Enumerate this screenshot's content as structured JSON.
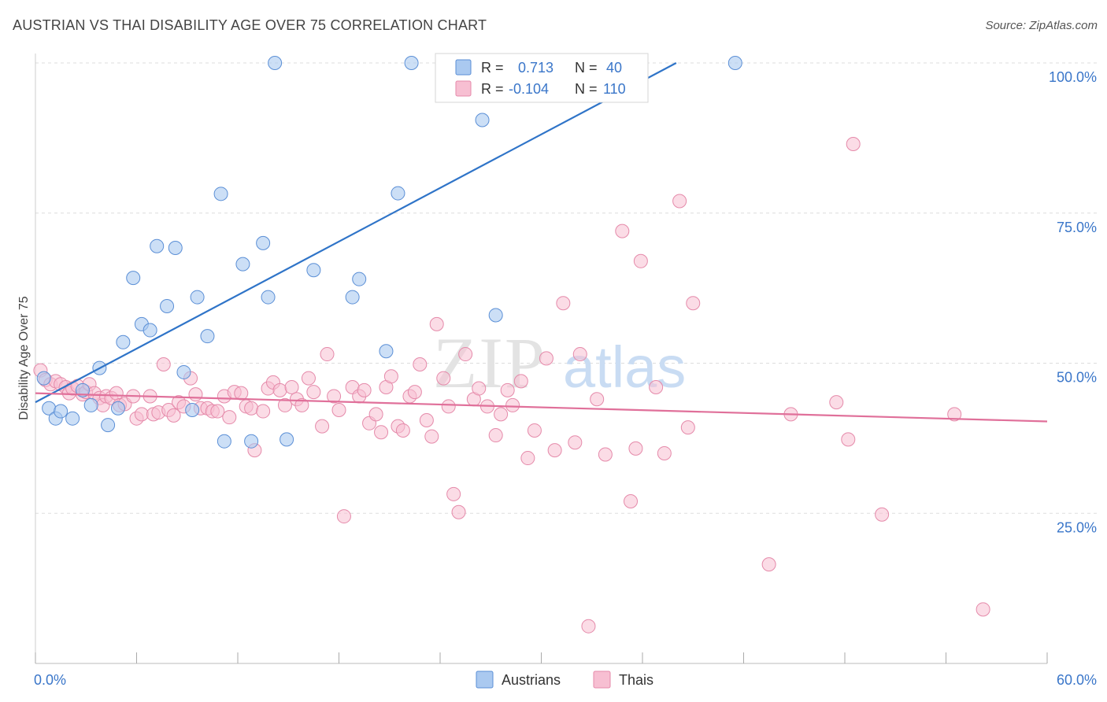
{
  "header": {
    "title": "AUSTRIAN VS THAI DISABILITY AGE OVER 75 CORRELATION CHART",
    "source": "Source: ZipAtlas.com"
  },
  "colors": {
    "austrians_fill": "#aac9f0",
    "austrians_stroke": "#5b8fd6",
    "austrians_line": "#2f74c8",
    "thais_fill": "#f7bfd2",
    "thais_stroke": "#e58aaa",
    "thais_line": "#e0709a",
    "axis_label": "#3a76c9",
    "grid": "#dddddd"
  },
  "watermark": {
    "zip": "ZIP",
    "atlas": "atlas"
  },
  "legend_top": {
    "rows": [
      {
        "r_label": "R =",
        "r_value": "0.713",
        "n_label": "N =",
        "n_value": "40"
      },
      {
        "r_label": "R =",
        "r_value": "-0.104",
        "n_label": "N =",
        "n_value": "110"
      }
    ]
  },
  "chart_data": {
    "type": "scatter",
    "title": "AUSTRIAN VS THAI DISABILITY AGE OVER 75 CORRELATION CHART",
    "xlabel": "",
    "ylabel": "Disability Age Over 75",
    "xlim": [
      0,
      60
    ],
    "ylim": [
      0,
      100
    ],
    "x_tick_labels": [
      "0.0%",
      "60.0%"
    ],
    "y_ticks": [
      25,
      50,
      75,
      100
    ],
    "y_tick_labels": [
      "25.0%",
      "50.0%",
      "75.0%",
      "100.0%"
    ],
    "grid": "horizontal dashed",
    "legend_position": "bottom-center",
    "series": [
      {
        "name": "Austrians",
        "r": 0.713,
        "n": 40,
        "trend": [
          [
            0,
            43.5
          ],
          [
            38,
            100
          ]
        ],
        "points": [
          [
            0.5,
            47.5
          ],
          [
            0.8,
            42.5
          ],
          [
            1.2,
            40.8
          ],
          [
            1.5,
            42.0
          ],
          [
            2.2,
            40.8
          ],
          [
            2.8,
            45.5
          ],
          [
            3.3,
            43.0
          ],
          [
            3.8,
            49.2
          ],
          [
            4.3,
            39.7
          ],
          [
            4.9,
            42.5
          ],
          [
            5.2,
            53.5
          ],
          [
            5.8,
            64.2
          ],
          [
            6.3,
            56.5
          ],
          [
            6.8,
            55.5
          ],
          [
            7.2,
            69.5
          ],
          [
            7.8,
            59.5
          ],
          [
            8.3,
            69.2
          ],
          [
            8.8,
            48.5
          ],
          [
            9.3,
            42.2
          ],
          [
            9.6,
            61.0
          ],
          [
            10.2,
            54.5
          ],
          [
            11.0,
            78.2
          ],
          [
            11.2,
            37.0
          ],
          [
            12.3,
            66.5
          ],
          [
            12.8,
            37.0
          ],
          [
            13.5,
            70.0
          ],
          [
            13.8,
            61.0
          ],
          [
            14.2,
            100.0
          ],
          [
            14.9,
            37.3
          ],
          [
            16.5,
            65.5
          ],
          [
            18.8,
            61.0
          ],
          [
            19.2,
            64.0
          ],
          [
            20.8,
            52.0
          ],
          [
            21.5,
            78.3
          ],
          [
            22.3,
            100.0
          ],
          [
            24.2,
            100.0
          ],
          [
            26.5,
            90.5
          ],
          [
            27.3,
            58.0
          ],
          [
            29.5,
            100.0
          ],
          [
            41.5,
            100.0
          ]
        ]
      },
      {
        "name": "Thais",
        "r": -0.104,
        "n": 110,
        "trend": [
          [
            0,
            45.0
          ],
          [
            60,
            40.3
          ]
        ],
        "points": [
          [
            0.3,
            48.8
          ],
          [
            0.6,
            47.2
          ],
          [
            0.9,
            46.5
          ],
          [
            1.2,
            47.0
          ],
          [
            1.5,
            46.5
          ],
          [
            1.8,
            46.0
          ],
          [
            2.0,
            45.0
          ],
          [
            2.2,
            45.8
          ],
          [
            2.5,
            46.2
          ],
          [
            2.8,
            44.8
          ],
          [
            3.0,
            45.2
          ],
          [
            3.2,
            46.5
          ],
          [
            3.5,
            45.0
          ],
          [
            3.8,
            44.2
          ],
          [
            4.0,
            43.0
          ],
          [
            4.2,
            44.5
          ],
          [
            4.5,
            44.2
          ],
          [
            4.8,
            45.0
          ],
          [
            5.0,
            43.0
          ],
          [
            5.3,
            43.2
          ],
          [
            5.8,
            44.5
          ],
          [
            6.0,
            40.8
          ],
          [
            6.3,
            41.5
          ],
          [
            6.8,
            44.5
          ],
          [
            7.0,
            41.5
          ],
          [
            7.3,
            41.8
          ],
          [
            7.6,
            49.8
          ],
          [
            7.9,
            42.2
          ],
          [
            8.2,
            41.3
          ],
          [
            8.5,
            43.5
          ],
          [
            8.8,
            42.8
          ],
          [
            9.2,
            47.5
          ],
          [
            9.5,
            44.8
          ],
          [
            9.8,
            42.5
          ],
          [
            10.2,
            42.5
          ],
          [
            10.5,
            42.0
          ],
          [
            10.8,
            42.0
          ],
          [
            11.2,
            44.5
          ],
          [
            11.5,
            41.0
          ],
          [
            11.8,
            45.2
          ],
          [
            12.2,
            45.0
          ],
          [
            12.5,
            42.8
          ],
          [
            12.8,
            42.5
          ],
          [
            13.0,
            35.5
          ],
          [
            13.5,
            42.0
          ],
          [
            13.8,
            45.8
          ],
          [
            14.1,
            46.8
          ],
          [
            14.5,
            45.5
          ],
          [
            14.8,
            43.0
          ],
          [
            15.2,
            46.0
          ],
          [
            15.5,
            44.0
          ],
          [
            15.8,
            43.0
          ],
          [
            16.2,
            47.5
          ],
          [
            16.5,
            45.2
          ],
          [
            17.0,
            39.5
          ],
          [
            17.3,
            51.5
          ],
          [
            17.7,
            44.5
          ],
          [
            18.0,
            42.2
          ],
          [
            18.3,
            24.5
          ],
          [
            18.8,
            46.0
          ],
          [
            19.2,
            44.5
          ],
          [
            19.5,
            45.5
          ],
          [
            19.8,
            40.0
          ],
          [
            20.2,
            41.5
          ],
          [
            20.5,
            38.5
          ],
          [
            20.8,
            46.0
          ],
          [
            21.1,
            47.8
          ],
          [
            21.5,
            39.5
          ],
          [
            21.8,
            38.8
          ],
          [
            22.2,
            44.5
          ],
          [
            22.5,
            45.2
          ],
          [
            22.8,
            49.8
          ],
          [
            23.2,
            40.5
          ],
          [
            23.5,
            37.8
          ],
          [
            23.8,
            56.5
          ],
          [
            24.2,
            47.5
          ],
          [
            24.5,
            42.8
          ],
          [
            24.8,
            28.2
          ],
          [
            25.1,
            25.2
          ],
          [
            25.5,
            51.5
          ],
          [
            26.0,
            44.0
          ],
          [
            26.3,
            45.8
          ],
          [
            26.8,
            42.8
          ],
          [
            27.3,
            38.0
          ],
          [
            27.6,
            41.5
          ],
          [
            28.0,
            45.5
          ],
          [
            28.3,
            43.0
          ],
          [
            28.8,
            47.0
          ],
          [
            29.2,
            34.2
          ],
          [
            29.6,
            38.8
          ],
          [
            30.3,
            50.8
          ],
          [
            30.8,
            35.5
          ],
          [
            31.3,
            60.0
          ],
          [
            32.0,
            36.8
          ],
          [
            32.3,
            51.5
          ],
          [
            33.3,
            44.0
          ],
          [
            33.8,
            34.8
          ],
          [
            34.8,
            72.0
          ],
          [
            35.3,
            27.0
          ],
          [
            35.6,
            35.8
          ],
          [
            35.9,
            67.0
          ],
          [
            36.8,
            46.0
          ],
          [
            37.3,
            35.0
          ],
          [
            38.2,
            77.0
          ],
          [
            38.7,
            39.3
          ],
          [
            39.0,
            60.0
          ],
          [
            43.5,
            16.5
          ],
          [
            44.8,
            41.5
          ],
          [
            47.5,
            43.5
          ],
          [
            48.2,
            37.3
          ],
          [
            48.5,
            86.5
          ],
          [
            50.2,
            24.8
          ],
          [
            54.5,
            41.5
          ],
          [
            56.2,
            9.0
          ],
          [
            32.8,
            6.2
          ]
        ]
      }
    ]
  },
  "legend_bottom": {
    "items": [
      {
        "label": "Austrians"
      },
      {
        "label": "Thais"
      }
    ]
  }
}
